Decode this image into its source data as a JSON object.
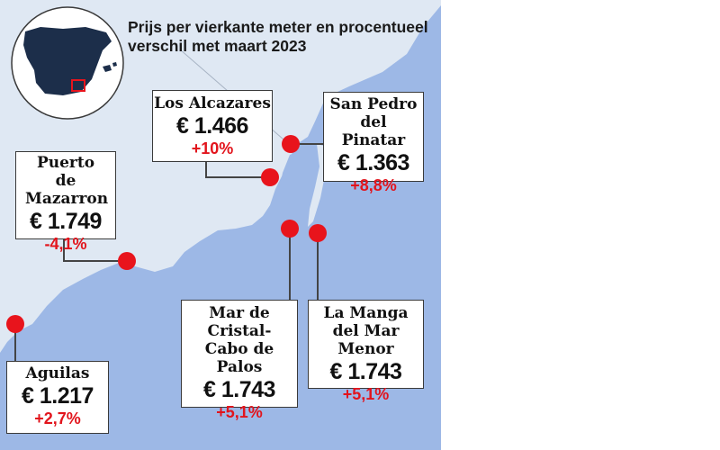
{
  "title": "Prijs per vierkante meter en procentueel verschil met maart 2023",
  "colors": {
    "sea": "#9db8e6",
    "land": "#dfe8f3",
    "marker": "#e8141c",
    "negative": "#e2141c",
    "inset_country": "#1c2e4a"
  },
  "locations": [
    {
      "id": "los-alcazares",
      "name": "Los Alcazares",
      "price": "€ 1.466",
      "change": "+10%"
    },
    {
      "id": "san-pedro",
      "name": "San Pedro del Pinatar",
      "price": "€ 1.363",
      "change": "+8,8%"
    },
    {
      "id": "puerto-de-mazarron",
      "name": "Puerto de Mazarron",
      "price": "€ 1.749",
      "change": "-4,1%"
    },
    {
      "id": "mar-de-cristal",
      "name": "Mar de Cristal-Cabo de Palos",
      "price": "€ 1.743",
      "change": "+5,1%"
    },
    {
      "id": "la-manga",
      "name": "La Manga del Mar Menor",
      "price": "€ 1.743",
      "change": "+5,1%"
    },
    {
      "id": "aguilas",
      "name": "Aguilas",
      "price": "€ 1.217",
      "change": "+2,7%"
    }
  ]
}
